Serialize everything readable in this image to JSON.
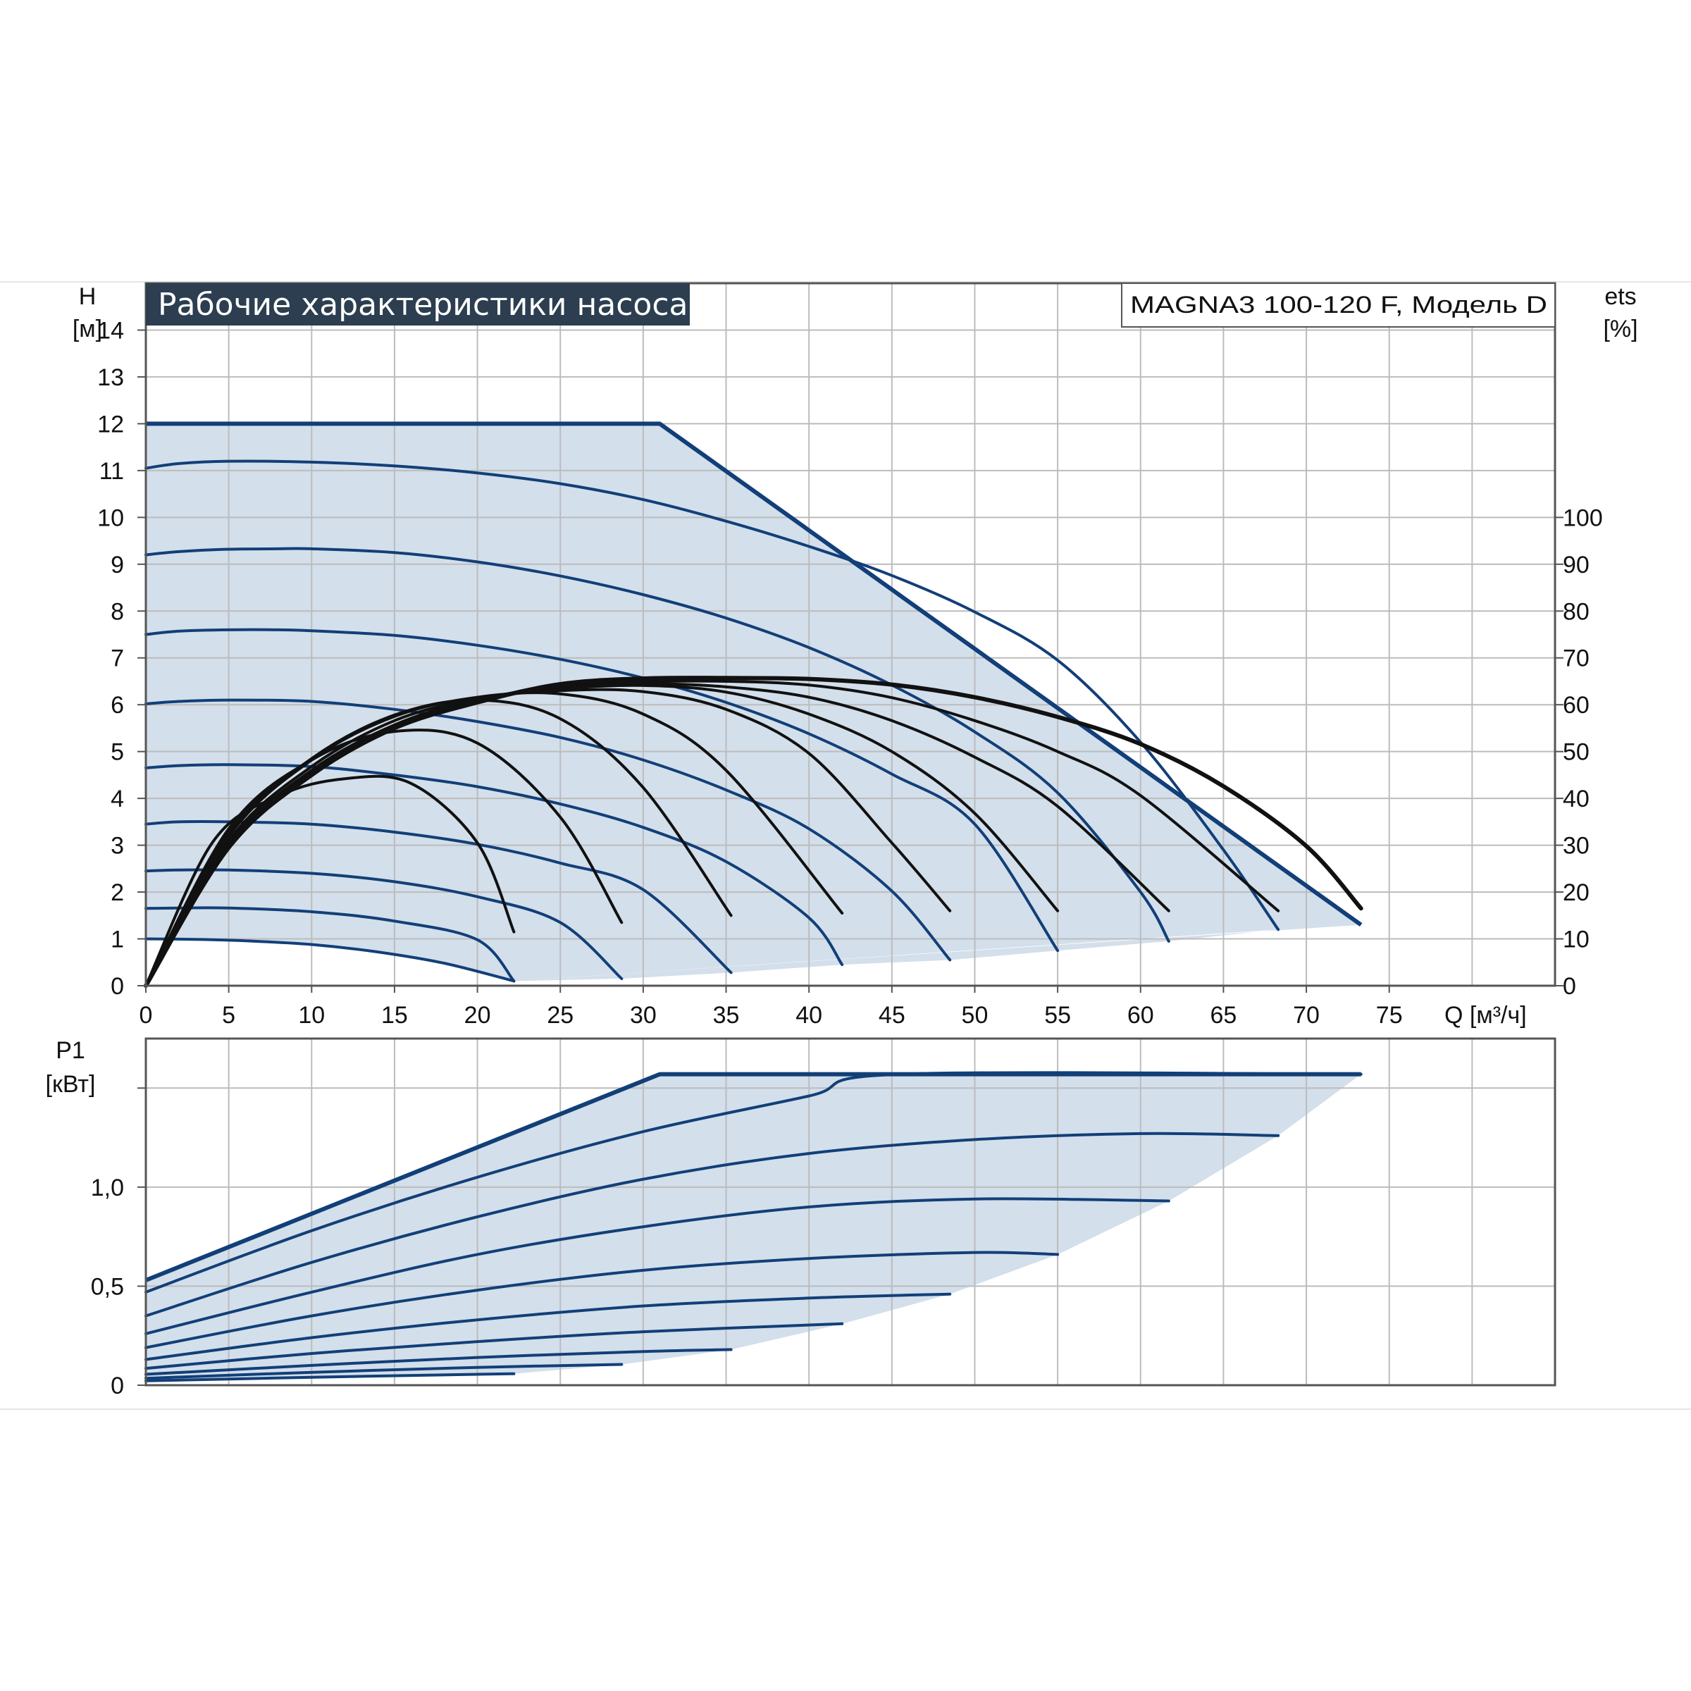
{
  "colors": {
    "background": "#ffffff",
    "title_bar": "#2c3e50",
    "grid": "#bcbcbc",
    "region_fill": "#d3dfeb",
    "pump_curve": "#123f78",
    "efficiency_curve": "#111111"
  },
  "chart_data": [
    {
      "type": "line",
      "name": "head",
      "title": "Рабочие характеристики насоса",
      "model_label": "MAGNA3 100-120 F, Модель D",
      "ylabel_symbol": "H",
      "ylabel_unit": "[м]",
      "y2label_symbol": "ets",
      "y2label_unit": "[%]",
      "xlabel": "Q [м³/ч]",
      "xlim": [
        0,
        85
      ],
      "ylim": [
        0,
        15
      ],
      "y2lim": [
        0,
        100
      ],
      "grid": true,
      "x_ticks": [
        "0",
        "5",
        "10",
        "15",
        "20",
        "25",
        "30",
        "35",
        "40",
        "45",
        "50",
        "55",
        "60",
        "65",
        "70",
        "75"
      ],
      "y_ticks": [
        "0",
        "1",
        "2",
        "3",
        "4",
        "5",
        "6",
        "7",
        "8",
        "9",
        "10",
        "11",
        "12",
        "13",
        "14"
      ],
      "y2_ticks": [
        "0",
        "10",
        "20",
        "30",
        "40",
        "50",
        "60",
        "70",
        "80",
        "90",
        "100"
      ],
      "envelope": [
        [
          0,
          12
        ],
        [
          31,
          12
        ],
        [
          73.3,
          1.3
        ]
      ],
      "head_curves": [
        {
          "x": [
            0,
            2,
            5,
            10,
            15,
            20,
            25,
            30,
            35,
            40,
            45,
            50,
            55,
            60,
            65,
            68.3
          ],
          "y": [
            11.05,
            11.15,
            11.2,
            11.18,
            11.1,
            10.95,
            10.72,
            10.38,
            9.92,
            9.38,
            8.76,
            7.98,
            6.95,
            5.2,
            2.9,
            1.2
          ]
        },
        {
          "x": [
            0,
            2,
            5,
            8,
            10,
            15,
            20,
            25,
            30,
            35,
            40,
            45,
            50,
            55,
            60,
            61.7
          ],
          "y": [
            9.2,
            9.27,
            9.32,
            9.33,
            9.33,
            9.25,
            9.05,
            8.75,
            8.35,
            7.85,
            7.22,
            6.42,
            5.42,
            4.12,
            2.0,
            0.95
          ]
        },
        {
          "x": [
            0,
            2,
            5,
            8,
            10,
            15,
            20,
            25,
            30,
            35,
            40,
            45,
            50,
            55
          ],
          "y": [
            7.5,
            7.57,
            7.6,
            7.6,
            7.58,
            7.48,
            7.27,
            6.97,
            6.57,
            6.05,
            5.38,
            4.52,
            3.45,
            0.75
          ]
        },
        {
          "x": [
            0,
            2,
            5,
            10,
            15,
            20,
            25,
            30,
            35,
            40,
            45,
            48.5
          ],
          "y": [
            6.02,
            6.07,
            6.1,
            6.07,
            5.9,
            5.64,
            5.3,
            4.82,
            4.18,
            3.35,
            2.02,
            0.55
          ]
        },
        {
          "x": [
            0,
            2,
            5,
            10,
            15,
            20,
            25,
            30,
            35,
            40,
            42
          ],
          "y": [
            4.65,
            4.7,
            4.72,
            4.68,
            4.5,
            4.25,
            3.88,
            3.38,
            2.65,
            1.45,
            0.45
          ]
        },
        {
          "x": [
            0,
            2,
            5,
            10,
            15,
            20,
            25,
            30,
            35.3
          ],
          "y": [
            3.45,
            3.5,
            3.5,
            3.45,
            3.28,
            3.02,
            2.62,
            2.05,
            0.28
          ]
        },
        {
          "x": [
            0,
            2,
            5,
            10,
            15,
            20,
            25,
            28.7
          ],
          "y": [
            2.45,
            2.47,
            2.47,
            2.4,
            2.22,
            1.9,
            1.35,
            0.15
          ]
        },
        {
          "x": [
            0,
            2,
            5,
            10,
            15,
            20,
            22.2
          ],
          "y": [
            1.65,
            1.66,
            1.66,
            1.58,
            1.38,
            0.98,
            0.1
          ]
        },
        {
          "x": [
            0,
            3,
            6,
            10,
            14,
            18,
            22.2
          ],
          "y": [
            1.0,
            0.99,
            0.96,
            0.88,
            0.72,
            0.48,
            0.1
          ]
        }
      ],
      "efficiency_curves_pct": [
        {
          "x": [
            0,
            4,
            8,
            12,
            16,
            20,
            22.2
          ],
          "y": [
            0,
            30.5,
            40.5,
            44.2,
            43.2,
            30.5,
            11.5
          ]
        },
        {
          "x": [
            0,
            5,
            10,
            15,
            20,
            25,
            28.7
          ],
          "y": [
            0,
            33.5,
            48.2,
            54.3,
            51.8,
            36.0,
            13.5
          ]
        },
        {
          "x": [
            0,
            5,
            10,
            15,
            20,
            25,
            30,
            35.3
          ],
          "y": [
            0,
            32.6,
            48.5,
            57.8,
            61.0,
            57.0,
            42.3,
            15.0
          ]
        },
        {
          "x": [
            0,
            5,
            10,
            15,
            20,
            25,
            30,
            35,
            42
          ],
          "y": [
            0,
            31.9,
            48.2,
            57.5,
            61.6,
            62.3,
            58.0,
            46.0,
            15.5
          ]
        },
        {
          "x": [
            0,
            5,
            10,
            15,
            20,
            25,
            30,
            35,
            40,
            45,
            48.5
          ],
          "y": [
            0,
            31.0,
            46.8,
            56.6,
            61.3,
            63.0,
            62.8,
            59.0,
            49.6,
            30.5,
            16.0
          ]
        },
        {
          "x": [
            0,
            5,
            10,
            15,
            20,
            25,
            30,
            35,
            40,
            45,
            50,
            55
          ],
          "y": [
            0,
            30.4,
            46.0,
            55.7,
            61.2,
            63.4,
            64.1,
            62.7,
            58.0,
            50.0,
            36.8,
            16.0
          ]
        },
        {
          "x": [
            0,
            5,
            10,
            15,
            20,
            25,
            30,
            35,
            40,
            45,
            50,
            55,
            61.7
          ],
          "y": [
            0,
            30.0,
            45.6,
            55.4,
            61.0,
            63.9,
            64.5,
            63.8,
            61.6,
            56.6,
            48.8,
            38.3,
            16.0
          ]
        },
        {
          "x": [
            0,
            5,
            10,
            15,
            20,
            25,
            30,
            35,
            40,
            45,
            50,
            55,
            60,
            68.3
          ],
          "y": [
            0,
            29.8,
            45.3,
            55.1,
            60.6,
            64.2,
            64.9,
            65.0,
            64.2,
            61.5,
            56.6,
            50.0,
            40.6,
            16.0
          ]
        },
        {
          "x": [
            0,
            5,
            10,
            15,
            20,
            25,
            30,
            35,
            40,
            45,
            50,
            55,
            60,
            65,
            70,
            73.3
          ],
          "y": [
            0,
            29.5,
            45.0,
            55.0,
            60.5,
            64.4,
            65.6,
            65.7,
            65.5,
            64.3,
            61.6,
            57.4,
            51.6,
            42.6,
            29.8,
            16.5
          ]
        }
      ]
    },
    {
      "type": "line",
      "name": "power",
      "ylabel_symbol": "P1",
      "ylabel_unit": "[кВт]",
      "xlim": [
        0,
        85
      ],
      "ylim": [
        0,
        1.75
      ],
      "grid": true,
      "y_ticks": [
        "0",
        "0,5",
        "1,0"
      ],
      "envelope": [
        [
          0,
          0.53
        ],
        [
          31,
          1.57
        ],
        [
          73.3,
          1.57
        ]
      ],
      "power_curves": [
        {
          "x": [
            0,
            10,
            20,
            30,
            40,
            45.5,
            73.3
          ],
          "y": [
            0.47,
            0.78,
            1.05,
            1.28,
            1.46,
            1.57,
            1.57
          ]
        },
        {
          "x": [
            0,
            10,
            20,
            30,
            40,
            50,
            60,
            68.3
          ],
          "y": [
            0.35,
            0.62,
            0.85,
            1.04,
            1.17,
            1.24,
            1.27,
            1.26
          ]
        },
        {
          "x": [
            0,
            10,
            20,
            30,
            40,
            50,
            61.7
          ],
          "y": [
            0.26,
            0.47,
            0.66,
            0.8,
            0.9,
            0.94,
            0.93
          ]
        },
        {
          "x": [
            0,
            10,
            20,
            30,
            40,
            50,
            55
          ],
          "y": [
            0.19,
            0.35,
            0.48,
            0.58,
            0.64,
            0.67,
            0.66
          ]
        },
        {
          "x": [
            0,
            10,
            20,
            30,
            40,
            48.5
          ],
          "y": [
            0.13,
            0.24,
            0.33,
            0.4,
            0.44,
            0.46
          ]
        },
        {
          "x": [
            0,
            10,
            20,
            30,
            42
          ],
          "y": [
            0.085,
            0.16,
            0.22,
            0.27,
            0.31
          ]
        },
        {
          "x": [
            0,
            10,
            20,
            30,
            35.3
          ],
          "y": [
            0.055,
            0.1,
            0.14,
            0.17,
            0.18
          ]
        },
        {
          "x": [
            0,
            10,
            20,
            28.7
          ],
          "y": [
            0.035,
            0.065,
            0.09,
            0.105
          ]
        },
        {
          "x": [
            0,
            10,
            20,
            22.2
          ],
          "y": [
            0.022,
            0.04,
            0.055,
            0.058
          ]
        }
      ]
    }
  ]
}
